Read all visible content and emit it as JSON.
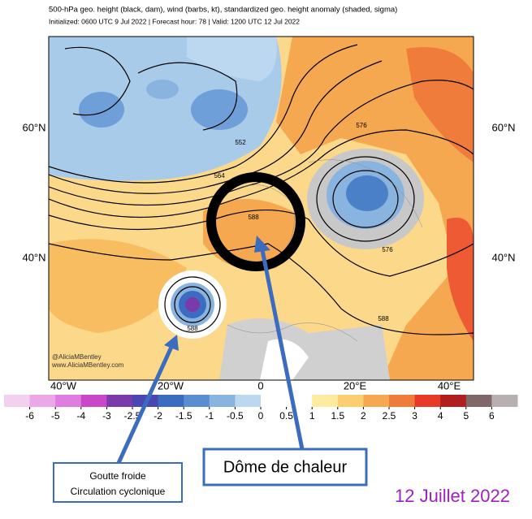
{
  "header": {
    "title": "500-hPa geo. height (black, dam), wind (barbs, kt), standardized geo. height anomaly (shaded, sigma)",
    "subtitle": "Initialized: 0600 UTC 9 Jul 2022 | Forecast hour: 78 | Valid: 1200 UTC 12 Jul 2022"
  },
  "map": {
    "lat_labels": [
      "60°N",
      "40°N"
    ],
    "lon_labels": [
      "40°W",
      "20°W",
      "0",
      "20°E",
      "40°E"
    ],
    "contour_labels": [
      552,
      564,
      576,
      588
    ],
    "credits": [
      "@AliciaMBentley",
      "www.AliciaMBentley.com"
    ]
  },
  "colorbar": {
    "labels": [
      -6,
      -5,
      -4,
      -3,
      -2.5,
      -2,
      -1.5,
      -1,
      -0.5,
      0,
      0.5,
      1,
      1.5,
      2,
      2.5,
      3,
      4,
      5,
      6
    ],
    "colors": [
      "#f3d0f0",
      "#eaa8e8",
      "#e07de0",
      "#c848c8",
      "#7a3aaa",
      "#4a48b0",
      "#3c6cc0",
      "#5a8ed0",
      "#8ab4e0",
      "#bcd8f0",
      "#ffffff",
      "#ffffff",
      "#fdeca0",
      "#fbcf70",
      "#f6a850",
      "#f07c3c",
      "#e83a28",
      "#b01e1e",
      "#806868",
      "#b8b0b0"
    ]
  },
  "annotations": {
    "heat_dome": "Dôme de chaleur",
    "cold_drop": [
      "Goutte froide",
      "Circulation cyclonique"
    ],
    "date": "12 Juillet 2022"
  }
}
